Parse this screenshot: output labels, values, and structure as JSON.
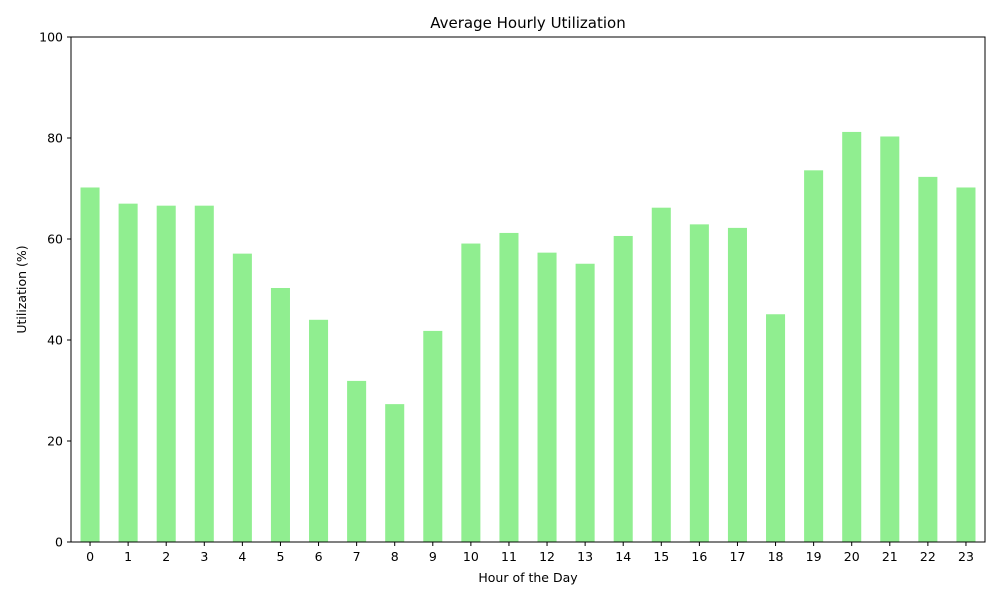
{
  "chart_data": {
    "type": "bar",
    "title": "Average Hourly Utilization",
    "xlabel": "Hour of the Day",
    "ylabel": "Utilization (%)",
    "categories": [
      "0",
      "1",
      "2",
      "3",
      "4",
      "5",
      "6",
      "7",
      "8",
      "9",
      "10",
      "11",
      "12",
      "13",
      "14",
      "15",
      "16",
      "17",
      "18",
      "19",
      "20",
      "21",
      "22",
      "23"
    ],
    "values": [
      70.2,
      67.0,
      66.6,
      66.6,
      57.1,
      50.3,
      44.0,
      31.9,
      27.3,
      41.8,
      59.1,
      61.2,
      57.3,
      55.1,
      60.6,
      66.2,
      62.9,
      62.2,
      45.1,
      73.6,
      81.2,
      80.3,
      72.3,
      70.2
    ],
    "ylim": [
      0,
      100
    ],
    "yticks": [
      0,
      20,
      40,
      60,
      80,
      100
    ],
    "bar_color": "#90ee90",
    "grid": false,
    "legend": "none"
  }
}
